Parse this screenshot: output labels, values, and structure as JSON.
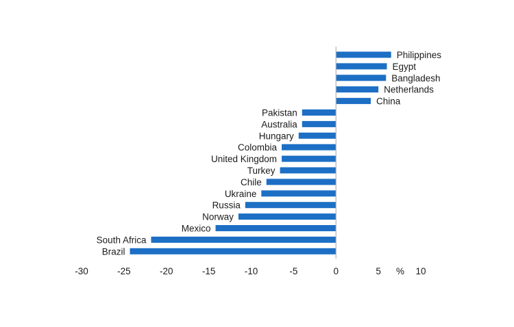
{
  "chart_data": {
    "type": "bar",
    "orientation": "horizontal",
    "categories": [
      "Philippines",
      "Egypt",
      "Bangladesh",
      "Netherlands",
      "China",
      "Pakistan",
      "Australia",
      "Hungary",
      "Colombia",
      "United Kingdom",
      "Turkey",
      "Chile",
      "Ukraine",
      "Russia",
      "Norway",
      "Mexico",
      "South Africa",
      "Brazil"
    ],
    "values": [
      6.5,
      6.0,
      5.9,
      5.0,
      4.1,
      -4.0,
      -4.0,
      -4.4,
      -6.4,
      -6.4,
      -6.6,
      -8.2,
      -8.8,
      -10.7,
      -11.5,
      -14.2,
      -21.8,
      -24.3
    ],
    "xlim": [
      -30,
      10
    ],
    "xticks": [
      "-30",
      "-25",
      "-20",
      "-15",
      "-10",
      "-5",
      "0",
      "5",
      "10"
    ],
    "xunit": "%",
    "grid": false,
    "bar_color": "#1c6fc4",
    "axis_color": "#b3b3b3"
  }
}
